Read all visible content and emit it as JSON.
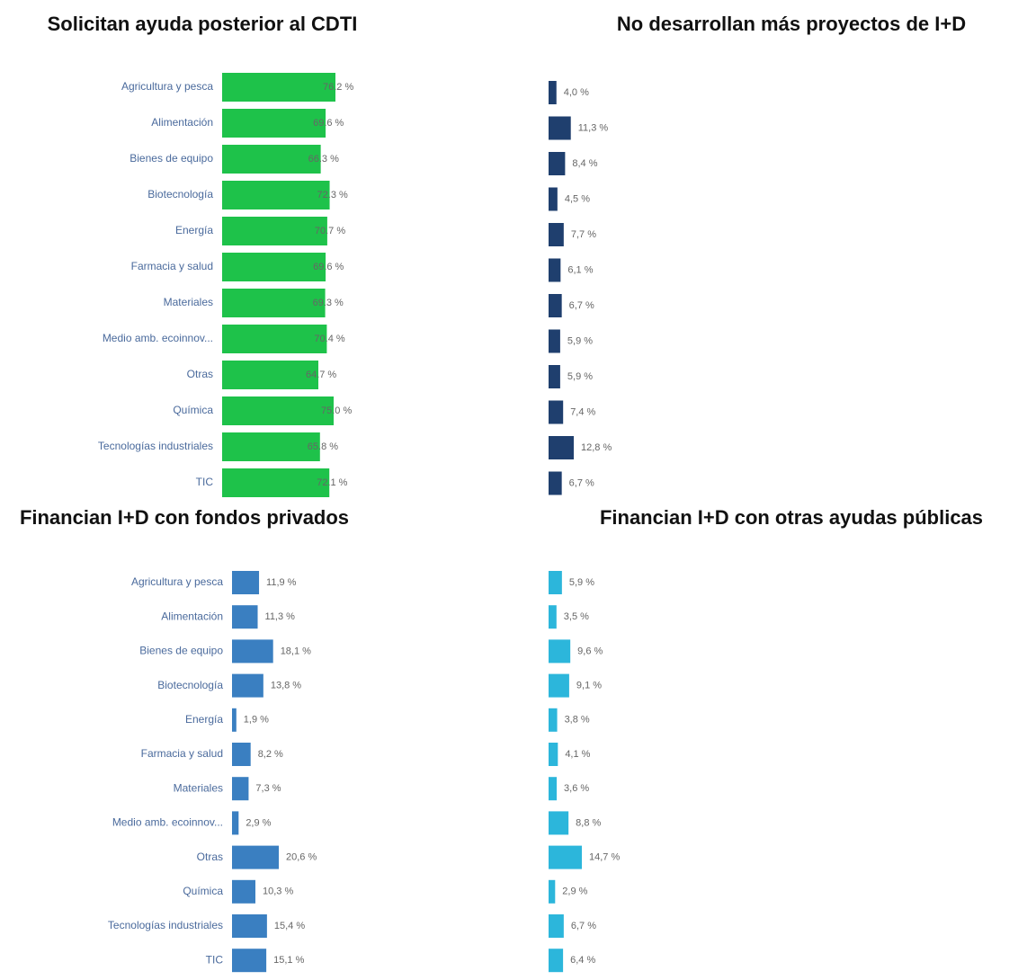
{
  "chart_data": [
    {
      "type": "bar",
      "title": "Solicitan ayuda posterior al CDTI",
      "color": "#1ec24a",
      "categories": [
        "Agricultura y pesca",
        "Alimentación",
        "Bienes de equipo",
        "Biotecnología",
        "Energía",
        "Farmacia y salud",
        "Materiales",
        "Medio amb. ecoinnov...",
        "Otras",
        "Química",
        "Tecnologías industriales",
        "TIC"
      ],
      "values": [
        76.2,
        69.6,
        66.3,
        72.3,
        70.7,
        69.6,
        69.3,
        70.4,
        64.7,
        75.0,
        65.8,
        72.1
      ],
      "value_labels": [
        "76.2 %",
        "69.6 %",
        "66.3 %",
        "72.3 %",
        "70.7 %",
        "69.6 %",
        "69.3 %",
        "70.4 %",
        "64.7 %",
        "75.0 %",
        "65.8 %",
        "72.1 %"
      ]
    },
    {
      "type": "bar",
      "title": "No desarrollan más proyectos de I+D",
      "color": "#1f3f6e",
      "values": [
        4.0,
        11.3,
        8.4,
        4.5,
        7.7,
        6.1,
        6.7,
        5.9,
        5.9,
        7.4,
        12.8,
        6.7
      ],
      "value_labels": [
        "4,0 %",
        "11,3 %",
        "8,4 %",
        "4,5 %",
        "7,7 %",
        "6,1 %",
        "6,7 %",
        "5,9 %",
        "5,9 %",
        "7,4 %",
        "12,8 %",
        "6,7 %"
      ]
    },
    {
      "type": "bar",
      "title": "Financian I+D con fondos privados",
      "color": "#3a7fc1",
      "categories": [
        "Agricultura y pesca",
        "Alimentación",
        "Bienes de equipo",
        "Biotecnología",
        "Energía",
        "Farmacia y salud",
        "Materiales",
        "Medio amb. ecoinnov...",
        "Otras",
        "Química",
        "Tecnologías industriales",
        "TIC"
      ],
      "values": [
        11.9,
        11.3,
        18.1,
        13.8,
        1.9,
        8.2,
        7.3,
        2.9,
        20.6,
        10.3,
        15.4,
        15.1
      ],
      "value_labels": [
        "11,9 %",
        "11,3 %",
        "18,1 %",
        "13,8 %",
        "1,9 %",
        "8,2 %",
        "7,3 %",
        "2,9 %",
        "20,6 %",
        "10,3 %",
        "15,4 %",
        "15,1 %"
      ]
    },
    {
      "type": "bar",
      "title": "Financian I+D con otras ayudas públicas",
      "color": "#2cb6db",
      "values": [
        5.9,
        3.5,
        9.6,
        9.1,
        3.8,
        4.1,
        3.6,
        8.8,
        14.7,
        2.9,
        6.7,
        6.4
      ],
      "value_labels": [
        "5,9 %",
        "3,5 %",
        "9,6 %",
        "9,1 %",
        "3,8 %",
        "4,1 %",
        "3,6 %",
        "8,8 %",
        "14,7 %",
        "2,9 %",
        "6,7 %",
        "6,4 %"
      ]
    }
  ]
}
